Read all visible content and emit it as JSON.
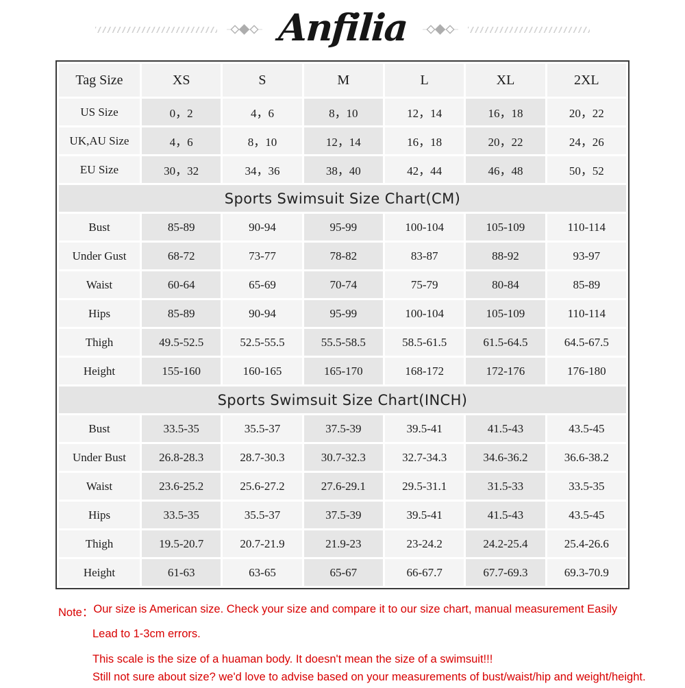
{
  "brand": {
    "logo_text": "Anfilia"
  },
  "table": {
    "header": [
      "Tag Size",
      "XS",
      "S",
      "M",
      "L",
      "XL",
      "2XL"
    ],
    "sections": [
      {
        "rows": [
          {
            "label": "US Size",
            "values": [
              "0，2",
              "4，6",
              "8，10",
              "12，14",
              "16，18",
              "20，22"
            ]
          },
          {
            "label": "UK,AU Size",
            "values": [
              "4，6",
              "8，10",
              "12，14",
              "16，18",
              "20，22",
              "24，26"
            ]
          },
          {
            "label": "EU Size",
            "values": [
              "30，32",
              "34，36",
              "38，40",
              "42，44",
              "46，48",
              "50，52"
            ]
          }
        ]
      },
      {
        "banner": "Sports Swimsuit Size Chart(CM)",
        "rows": [
          {
            "label": "Bust",
            "values": [
              "85-89",
              "90-94",
              "95-99",
              "100-104",
              "105-109",
              "110-114"
            ]
          },
          {
            "label": "Under Gust",
            "values": [
              "68-72",
              "73-77",
              "78-82",
              "83-87",
              "88-92",
              "93-97"
            ]
          },
          {
            "label": "Waist",
            "values": [
              "60-64",
              "65-69",
              "70-74",
              "75-79",
              "80-84",
              "85-89"
            ]
          },
          {
            "label": "Hips",
            "values": [
              "85-89",
              "90-94",
              "95-99",
              "100-104",
              "105-109",
              "110-114"
            ]
          },
          {
            "label": "Thigh",
            "values": [
              "49.5-52.5",
              "52.5-55.5",
              "55.5-58.5",
              "58.5-61.5",
              "61.5-64.5",
              "64.5-67.5"
            ]
          },
          {
            "label": "Height",
            "values": [
              "155-160",
              "160-165",
              "165-170",
              "168-172",
              "172-176",
              "176-180"
            ]
          }
        ]
      },
      {
        "banner": "Sports Swimsuit Size Chart(INCH)",
        "rows": [
          {
            "label": "Bust",
            "values": [
              "33.5-35",
              "35.5-37",
              "37.5-39",
              "39.5-41",
              "41.5-43",
              "43.5-45"
            ]
          },
          {
            "label": "Under Bust",
            "values": [
              "26.8-28.3",
              "28.7-30.3",
              "30.7-32.3",
              "32.7-34.3",
              "34.6-36.2",
              "36.6-38.2"
            ]
          },
          {
            "label": "Waist",
            "values": [
              "23.6-25.2",
              "25.6-27.2",
              "27.6-29.1",
              "29.5-31.1",
              "31.5-33",
              "33.5-35"
            ]
          },
          {
            "label": "Hips",
            "values": [
              "33.5-35",
              "35.5-37",
              "37.5-39",
              "39.5-41",
              "41.5-43",
              "43.5-45"
            ]
          },
          {
            "label": "Thigh",
            "values": [
              "19.5-20.7",
              "20.7-21.9",
              "21.9-23",
              "23-24.2",
              "24.2-25.4",
              "25.4-26.6"
            ]
          },
          {
            "label": "Height",
            "values": [
              "61-63",
              "63-65",
              "65-67",
              "66-67.7",
              "67.7-69.3",
              "69.3-70.9"
            ]
          }
        ]
      }
    ]
  },
  "notes": {
    "label": "Note：",
    "lines": [
      "Our size is American size. Check your size and compare it to our size chart, manual measurement Easily",
      "Lead to 1-3cm errors.",
      "This scale is the size of a huaman body. It doesn't mean the size of a swimsuit!!!",
      "Still not sure about size? we'd love to advise based on your measurements of bust/waist/hip and weight/height."
    ]
  },
  "colors": {
    "note_red": "#d80000",
    "shaded_cell": "#e6e6e6",
    "banner_bg": "#e4e4e4",
    "table_border": "#3a3a3a"
  }
}
